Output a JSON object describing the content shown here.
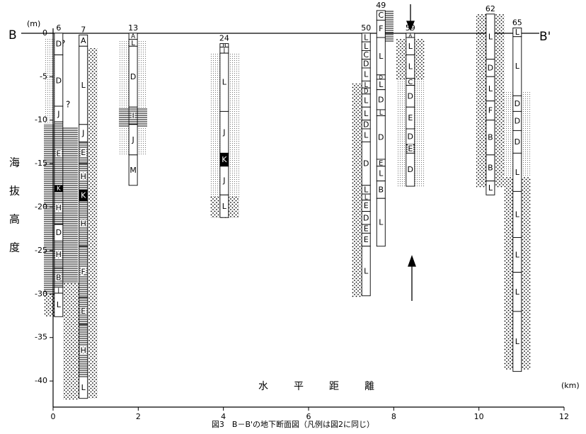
{
  "title": "図3　B－B'の地下断面図（凡例は図2に同じ）",
  "section_start": "B",
  "section_end": "B'",
  "y_unit": "(m)",
  "x_unit": "(km)",
  "y_axis_label": [
    "海",
    "抜",
    "高",
    "度"
  ],
  "x_axis_label": [
    "水",
    "平",
    "距",
    "離"
  ],
  "question_marks": [
    "?",
    "?"
  ],
  "xlim": [
    0,
    12
  ],
  "ylim": [
    -43,
    3
  ],
  "xticks": [
    0,
    2,
    4,
    6,
    8,
    10,
    12
  ],
  "yticks": [
    0,
    -5,
    -10,
    -15,
    -20,
    -25,
    -30,
    -35,
    -40
  ],
  "boreholes": [
    {
      "label": "6",
      "x": 0.13,
      "layers": [
        {
          "name": "D",
          "top": 0,
          "bottom": -2.5
        },
        {
          "name": "D",
          "top": -2.5,
          "bottom": -8.4
        },
        {
          "name": "J",
          "top": -8.4,
          "bottom": -10.2
        },
        {
          "name": "E",
          "top": -10.2,
          "bottom": -17.5,
          "fill": "hatch"
        },
        {
          "name": "K",
          "top": -17.5,
          "bottom": -18.2,
          "fill": "black"
        },
        {
          "name": "H",
          "top": -18.2,
          "bottom": -22,
          "fill": "hatch"
        },
        {
          "name": "D",
          "top": -22,
          "bottom": -23.9
        },
        {
          "name": "H",
          "top": -23.9,
          "bottom": -27,
          "fill": "hatch"
        },
        {
          "name": "B",
          "top": -27,
          "bottom": -29.2,
          "fill": "hatch"
        },
        {
          "name": "J",
          "top": -29.2,
          "bottom": -29.9
        },
        {
          "name": "L",
          "top": -29.9,
          "bottom": -32.6
        }
      ]
    },
    {
      "label": "7",
      "x": 0.71,
      "layers": [
        {
          "name": "A",
          "top": -0.2,
          "bottom": -1.5
        },
        {
          "name": "L",
          "top": -1.5,
          "bottom": -10.5
        },
        {
          "name": "J",
          "top": -10.5,
          "bottom": -12.5
        },
        {
          "name": "E",
          "top": -12.5,
          "bottom": -15,
          "fill": "hatch"
        },
        {
          "name": "H",
          "top": -15,
          "bottom": -18,
          "fill": "hatch"
        },
        {
          "name": "K",
          "top": -18,
          "bottom": -19.3,
          "fill": "black"
        },
        {
          "name": "H",
          "top": -19.3,
          "bottom": -24.5,
          "fill": "hatch"
        },
        {
          "name": "F",
          "top": -24.5,
          "bottom": -30.4,
          "fill": "hatch"
        },
        {
          "name": "E",
          "top": -30.4,
          "bottom": -33.5,
          "fill": "hatch"
        },
        {
          "name": "H",
          "top": -33.5,
          "bottom": -39.5,
          "fill": "hatch"
        },
        {
          "name": "L",
          "top": -39.5,
          "bottom": -42
        }
      ]
    },
    {
      "label": "13",
      "x": 1.88,
      "layers": [
        {
          "name": "A",
          "top": 0,
          "bottom": -0.7
        },
        {
          "name": "L",
          "top": -0.7,
          "bottom": -1.5
        },
        {
          "name": "D",
          "top": -1.5,
          "bottom": -8.5
        },
        {
          "name": "I",
          "top": -8.5,
          "bottom": -10.5,
          "fill": "hatch"
        },
        {
          "name": "J",
          "top": -10.5,
          "bottom": -14
        },
        {
          "name": "M",
          "top": -14,
          "bottom": -17.5
        }
      ]
    },
    {
      "label": "24",
      "x": 4.02,
      "layers": [
        {
          "name": "H",
          "top": -1.2,
          "bottom": -1.6
        },
        {
          "name": "J",
          "top": -1.6,
          "bottom": -2.3
        },
        {
          "name": "L",
          "top": -2.3,
          "bottom": -9
        },
        {
          "name": "J",
          "top": -9,
          "bottom": -13.8
        },
        {
          "name": "K",
          "top": -13.8,
          "bottom": -15.3,
          "fill": "black"
        },
        {
          "name": "J",
          "top": -15.3,
          "bottom": -18.6
        },
        {
          "name": "L",
          "top": -18.6,
          "bottom": -21.2
        }
      ]
    },
    {
      "label": "50",
      "x": 7.35,
      "layers": [
        {
          "name": "L",
          "top": 0,
          "bottom": -1
        },
        {
          "name": "L",
          "top": -1,
          "bottom": -2
        },
        {
          "name": "C",
          "top": -2,
          "bottom": -3
        },
        {
          "name": "D",
          "top": -3,
          "bottom": -4
        },
        {
          "name": "L",
          "top": -4,
          "bottom": -5.5
        },
        {
          "name": "L",
          "top": -5.5,
          "bottom": -6.3
        },
        {
          "name": "D",
          "top": -6.3,
          "bottom": -7
        },
        {
          "name": "L",
          "top": -7,
          "bottom": -8.5
        },
        {
          "name": "L",
          "top": -8.5,
          "bottom": -10
        },
        {
          "name": "D",
          "top": -10,
          "bottom": -11
        },
        {
          "name": "L",
          "top": -11,
          "bottom": -12.5
        },
        {
          "name": "D",
          "top": -12.5,
          "bottom": -17.5
        },
        {
          "name": "L",
          "top": -17.5,
          "bottom": -18.5
        },
        {
          "name": "L",
          "top": -18.5,
          "bottom": -19.2
        },
        {
          "name": "E",
          "top": -19.2,
          "bottom": -20.5
        },
        {
          "name": "D",
          "top": -20.5,
          "bottom": -22
        },
        {
          "name": "E",
          "top": -22,
          "bottom": -23
        },
        {
          "name": "E",
          "top": -23,
          "bottom": -24.5
        },
        {
          "name": "L",
          "top": -24.5,
          "bottom": -30.2
        }
      ]
    },
    {
      "label": "49",
      "x": 7.7,
      "layers": [
        {
          "name": "C",
          "top": 2.6,
          "bottom": 1.5
        },
        {
          "name": "F",
          "top": 1.5,
          "bottom": -0.5
        },
        {
          "name": "L",
          "top": -0.5,
          "bottom": -4.8
        },
        {
          "name": "D",
          "top": -4.8,
          "bottom": -5.3
        },
        {
          "name": "L",
          "top": -5.3,
          "bottom": -6.5
        },
        {
          "name": "D",
          "top": -6.5,
          "bottom": -8.8
        },
        {
          "name": "L",
          "top": -8.8,
          "bottom": -9.5
        },
        {
          "name": "D",
          "top": -9.5,
          "bottom": -14.5
        },
        {
          "name": "E",
          "top": -14.5,
          "bottom": -15.3
        },
        {
          "name": "L",
          "top": -15.3,
          "bottom": -17
        },
        {
          "name": "B",
          "top": -17,
          "bottom": -19
        },
        {
          "name": "L",
          "top": -19,
          "bottom": -24.5
        }
      ]
    },
    {
      "label": "59",
      "x": 8.39,
      "layers": [
        {
          "name": "A",
          "top": 0,
          "bottom": -0.5
        },
        {
          "name": "L",
          "top": -0.5,
          "bottom": -2.5
        },
        {
          "name": "L",
          "top": -2.5,
          "bottom": -5.2
        },
        {
          "name": "C",
          "top": -5.2,
          "bottom": -6
        },
        {
          "name": "D",
          "top": -6,
          "bottom": -8.5
        },
        {
          "name": "E",
          "top": -8.5,
          "bottom": -11
        },
        {
          "name": "D",
          "top": -11,
          "bottom": -12.8
        },
        {
          "name": "E",
          "top": -12.8,
          "bottom": -13.8,
          "fill": "hatch"
        },
        {
          "name": "D",
          "top": -13.8,
          "bottom": -17.6
        }
      ]
    },
    {
      "label": "62",
      "x": 10.27,
      "layers": [
        {
          "name": "L",
          "top": 2.2,
          "bottom": -3
        },
        {
          "name": "D",
          "top": -3,
          "bottom": -5
        },
        {
          "name": "L",
          "top": -5,
          "bottom": -7.8
        },
        {
          "name": "F",
          "top": -7.8,
          "bottom": -10
        },
        {
          "name": "B",
          "top": -10,
          "bottom": -14
        },
        {
          "name": "B",
          "top": -14,
          "bottom": -17
        },
        {
          "name": "L",
          "top": -17,
          "bottom": -18.6
        }
      ]
    },
    {
      "label": "65",
      "x": 10.9,
      "layers": [
        {
          "name": "L",
          "top": 0.6,
          "bottom": -0.4
        },
        {
          "name": "L",
          "top": -0.4,
          "bottom": -7.2
        },
        {
          "name": "D",
          "top": -7.2,
          "bottom": -9
        },
        {
          "name": "D",
          "top": -9,
          "bottom": -11.2
        },
        {
          "name": "D",
          "top": -11.2,
          "bottom": -13.8
        },
        {
          "name": "L",
          "top": -13.8,
          "bottom": -18.2
        },
        {
          "name": "L",
          "top": -18.2,
          "bottom": -23.5
        },
        {
          "name": "L",
          "top": -23.5,
          "bottom": -27.5
        },
        {
          "name": "L",
          "top": -27.5,
          "bottom": -32
        },
        {
          "name": "L",
          "top": -32,
          "bottom": -38.9
        }
      ]
    }
  ]
}
